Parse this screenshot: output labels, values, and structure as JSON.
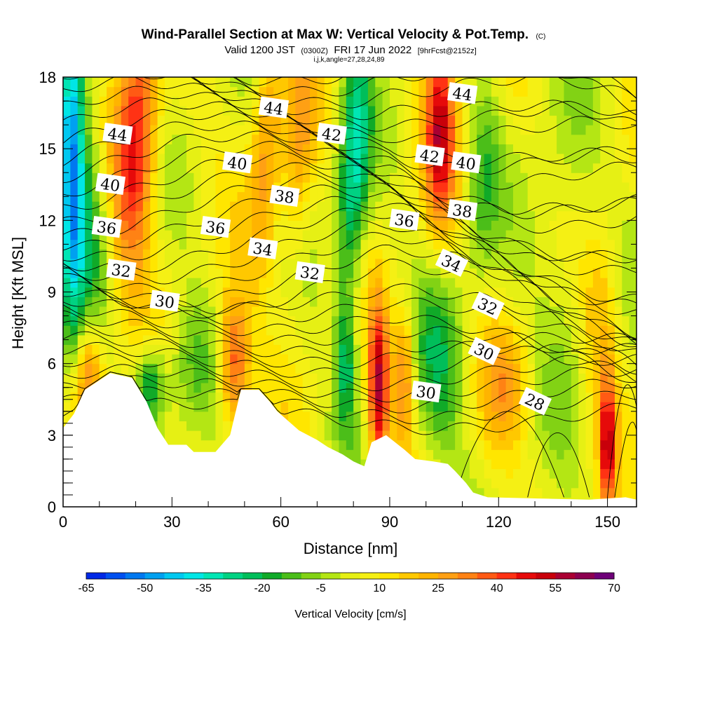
{
  "header": {
    "title_main": "Wind-Parallel Section at Max W: Vertical Velocity & Pot.Temp.",
    "title_unit": "(C)",
    "valid_prefix": "Valid 1200 JST",
    "valid_utc": "(0300Z)",
    "valid_date": "FRI 17 Jun 2022",
    "forecast_info": "[9hrFcst@2152z]",
    "grid_info": "i,j,k,angle=27,28,24,89"
  },
  "chart_data": {
    "type": "heatmap",
    "xlabel": "Distance [nm]",
    "ylabel": "Height [Kft MSL]",
    "xlim": [
      0,
      158
    ],
    "ylim": [
      0,
      18
    ],
    "x_ticks": [
      0,
      30,
      60,
      90,
      120,
      150
    ],
    "y_ticks": [
      0,
      3,
      6,
      9,
      12,
      15,
      18
    ],
    "colorbar": {
      "title": "Vertical Velocity [cm/s]",
      "ticks": [
        -65,
        -50,
        -35,
        -20,
        -5,
        10,
        25,
        40,
        55,
        70
      ],
      "levels": [
        -65,
        -60,
        -55,
        -50,
        -45,
        -40,
        -35,
        -30,
        -25,
        -20,
        -15,
        -10,
        -5,
        0,
        5,
        10,
        15,
        20,
        25,
        30,
        35,
        40,
        45,
        50,
        55,
        60,
        65,
        70
      ],
      "colors": [
        "#0028e6",
        "#0050f0",
        "#0078f0",
        "#00a0f0",
        "#00c8f0",
        "#00e6e6",
        "#00e6b4",
        "#00d282",
        "#00be5a",
        "#10aa28",
        "#4bbe19",
        "#82d214",
        "#b4e614",
        "#e6f014",
        "#f5f014",
        "#ffe600",
        "#ffc800",
        "#ffb400",
        "#ffa014",
        "#ff8214",
        "#ff5a14",
        "#ff3214",
        "#e60a0a",
        "#c8000a",
        "#aa0032",
        "#8c0050",
        "#6e0078"
      ]
    },
    "series": [
      {
        "name": "Vertical Velocity",
        "units": "cm/s"
      },
      {
        "name": "Potential Temperature",
        "units": "C",
        "contour_labels": [
          {
            "label": "44",
            "x": 15,
            "y": 15.6
          },
          {
            "label": "44",
            "x": 58,
            "y": 16.7
          },
          {
            "label": "44",
            "x": 110,
            "y": 17.3
          },
          {
            "label": "42",
            "x": 74,
            "y": 15.6
          },
          {
            "label": "42",
            "x": 101,
            "y": 14.7
          },
          {
            "label": "40",
            "x": 13,
            "y": 13.5
          },
          {
            "label": "40",
            "x": 48,
            "y": 14.4
          },
          {
            "label": "40",
            "x": 111,
            "y": 14.4
          },
          {
            "label": "38",
            "x": 61,
            "y": 13.0
          },
          {
            "label": "38",
            "x": 110,
            "y": 12.4
          },
          {
            "label": "36",
            "x": 12,
            "y": 11.7
          },
          {
            "label": "36",
            "x": 42,
            "y": 11.7
          },
          {
            "label": "36",
            "x": 94,
            "y": 12.0
          },
          {
            "label": "34",
            "x": 55,
            "y": 10.8
          },
          {
            "label": "34",
            "x": 107,
            "y": 10.2
          },
          {
            "label": "32",
            "x": 16,
            "y": 9.9
          },
          {
            "label": "32",
            "x": 68,
            "y": 9.8
          },
          {
            "label": "32",
            "x": 117,
            "y": 8.4
          },
          {
            "label": "30",
            "x": 28,
            "y": 8.6
          },
          {
            "label": "30",
            "x": 116,
            "y": 6.5
          },
          {
            "label": "30",
            "x": 100,
            "y": 4.8
          },
          {
            "label": "28",
            "x": 130,
            "y": 4.4
          }
        ]
      }
    ],
    "terrain": [
      [
        0,
        3.3
      ],
      [
        3,
        3.9
      ],
      [
        6,
        4.9
      ],
      [
        9,
        5.2
      ],
      [
        13,
        5.6
      ],
      [
        19,
        5.4
      ],
      [
        23,
        4.4
      ],
      [
        26,
        3.3
      ],
      [
        29,
        2.6
      ],
      [
        34,
        2.6
      ],
      [
        36,
        2.3
      ],
      [
        42,
        2.3
      ],
      [
        46,
        3.0
      ],
      [
        49,
        4.9
      ],
      [
        54,
        4.9
      ],
      [
        57,
        4.4
      ],
      [
        59,
        4.0
      ],
      [
        62,
        3.6
      ],
      [
        65,
        3.2
      ],
      [
        70,
        2.8
      ],
      [
        73,
        2.5
      ],
      [
        77,
        2.2
      ],
      [
        80,
        1.9
      ],
      [
        83,
        1.7
      ],
      [
        85,
        2.7
      ],
      [
        89,
        3.0
      ],
      [
        94,
        2.4
      ],
      [
        97,
        2.0
      ],
      [
        102,
        1.9
      ],
      [
        106,
        1.8
      ],
      [
        108,
        1.5
      ],
      [
        111,
        1.0
      ],
      [
        113,
        0.6
      ],
      [
        117,
        0.4
      ],
      [
        145,
        0.3
      ],
      [
        155,
        0.4
      ],
      [
        158,
        0.3
      ]
    ],
    "velocity_features": [
      {
        "x": 2.5,
        "y": 14,
        "sx": 2.5,
        "sy": 5,
        "amp": -55,
        "tilt": 0
      },
      {
        "x": 8,
        "y": 12,
        "sx": 3,
        "sy": 4,
        "amp": -18,
        "tilt": 0
      },
      {
        "x": 20,
        "y": 15,
        "sx": 4,
        "sy": 4,
        "amp": 42,
        "tilt": 0.3
      },
      {
        "x": 7,
        "y": 5.5,
        "sx": 3,
        "sy": 2,
        "amp": 32,
        "tilt": 0
      },
      {
        "x": 24,
        "y": 5,
        "sx": 3,
        "sy": 1.2,
        "amp": -30,
        "tilt": 0
      },
      {
        "x": 35,
        "y": 6,
        "sx": 5,
        "sy": 2,
        "amp": -15,
        "tilt": 0
      },
      {
        "x": 47,
        "y": 6,
        "sx": 3,
        "sy": 2,
        "amp": 38,
        "tilt": 0
      },
      {
        "x": 56,
        "y": 15,
        "sx": 3,
        "sy": 4,
        "amp": 22,
        "tilt": 0.3
      },
      {
        "x": 65,
        "y": 15,
        "sx": 3,
        "sy": 4,
        "amp": 18,
        "tilt": 0.3
      },
      {
        "x": 80,
        "y": 14,
        "sx": 3,
        "sy": 4,
        "amp": -35,
        "tilt": 0.3
      },
      {
        "x": 78,
        "y": 6,
        "sx": 2,
        "sy": 2,
        "amp": -25,
        "tilt": 0
      },
      {
        "x": 87,
        "y": 5,
        "sx": 2,
        "sy": 2.5,
        "amp": 50,
        "tilt": 0
      },
      {
        "x": 94,
        "y": 5.5,
        "sx": 2,
        "sy": 2,
        "amp": 30,
        "tilt": 0
      },
      {
        "x": 104,
        "y": 6,
        "sx": 5,
        "sy": 3,
        "amp": -20,
        "tilt": 0
      },
      {
        "x": 104,
        "y": 16,
        "sx": 3,
        "sy": 3,
        "amp": 45,
        "tilt": 0
      },
      {
        "x": 116,
        "y": 14,
        "sx": 3,
        "sy": 3,
        "amp": -15,
        "tilt": 0.3
      },
      {
        "x": 122,
        "y": 5,
        "sx": 5,
        "sy": 2,
        "amp": 18,
        "tilt": 0
      },
      {
        "x": 150,
        "y": 2.5,
        "sx": 1.5,
        "sy": 2,
        "amp": 45,
        "tilt": 0
      },
      {
        "x": 140,
        "y": 10,
        "sx": 8,
        "sy": 5,
        "amp": -10,
        "tilt": 0
      },
      {
        "x": 148,
        "y": 8,
        "sx": 4,
        "sy": 3,
        "amp": 20,
        "tilt": 0
      }
    ]
  }
}
